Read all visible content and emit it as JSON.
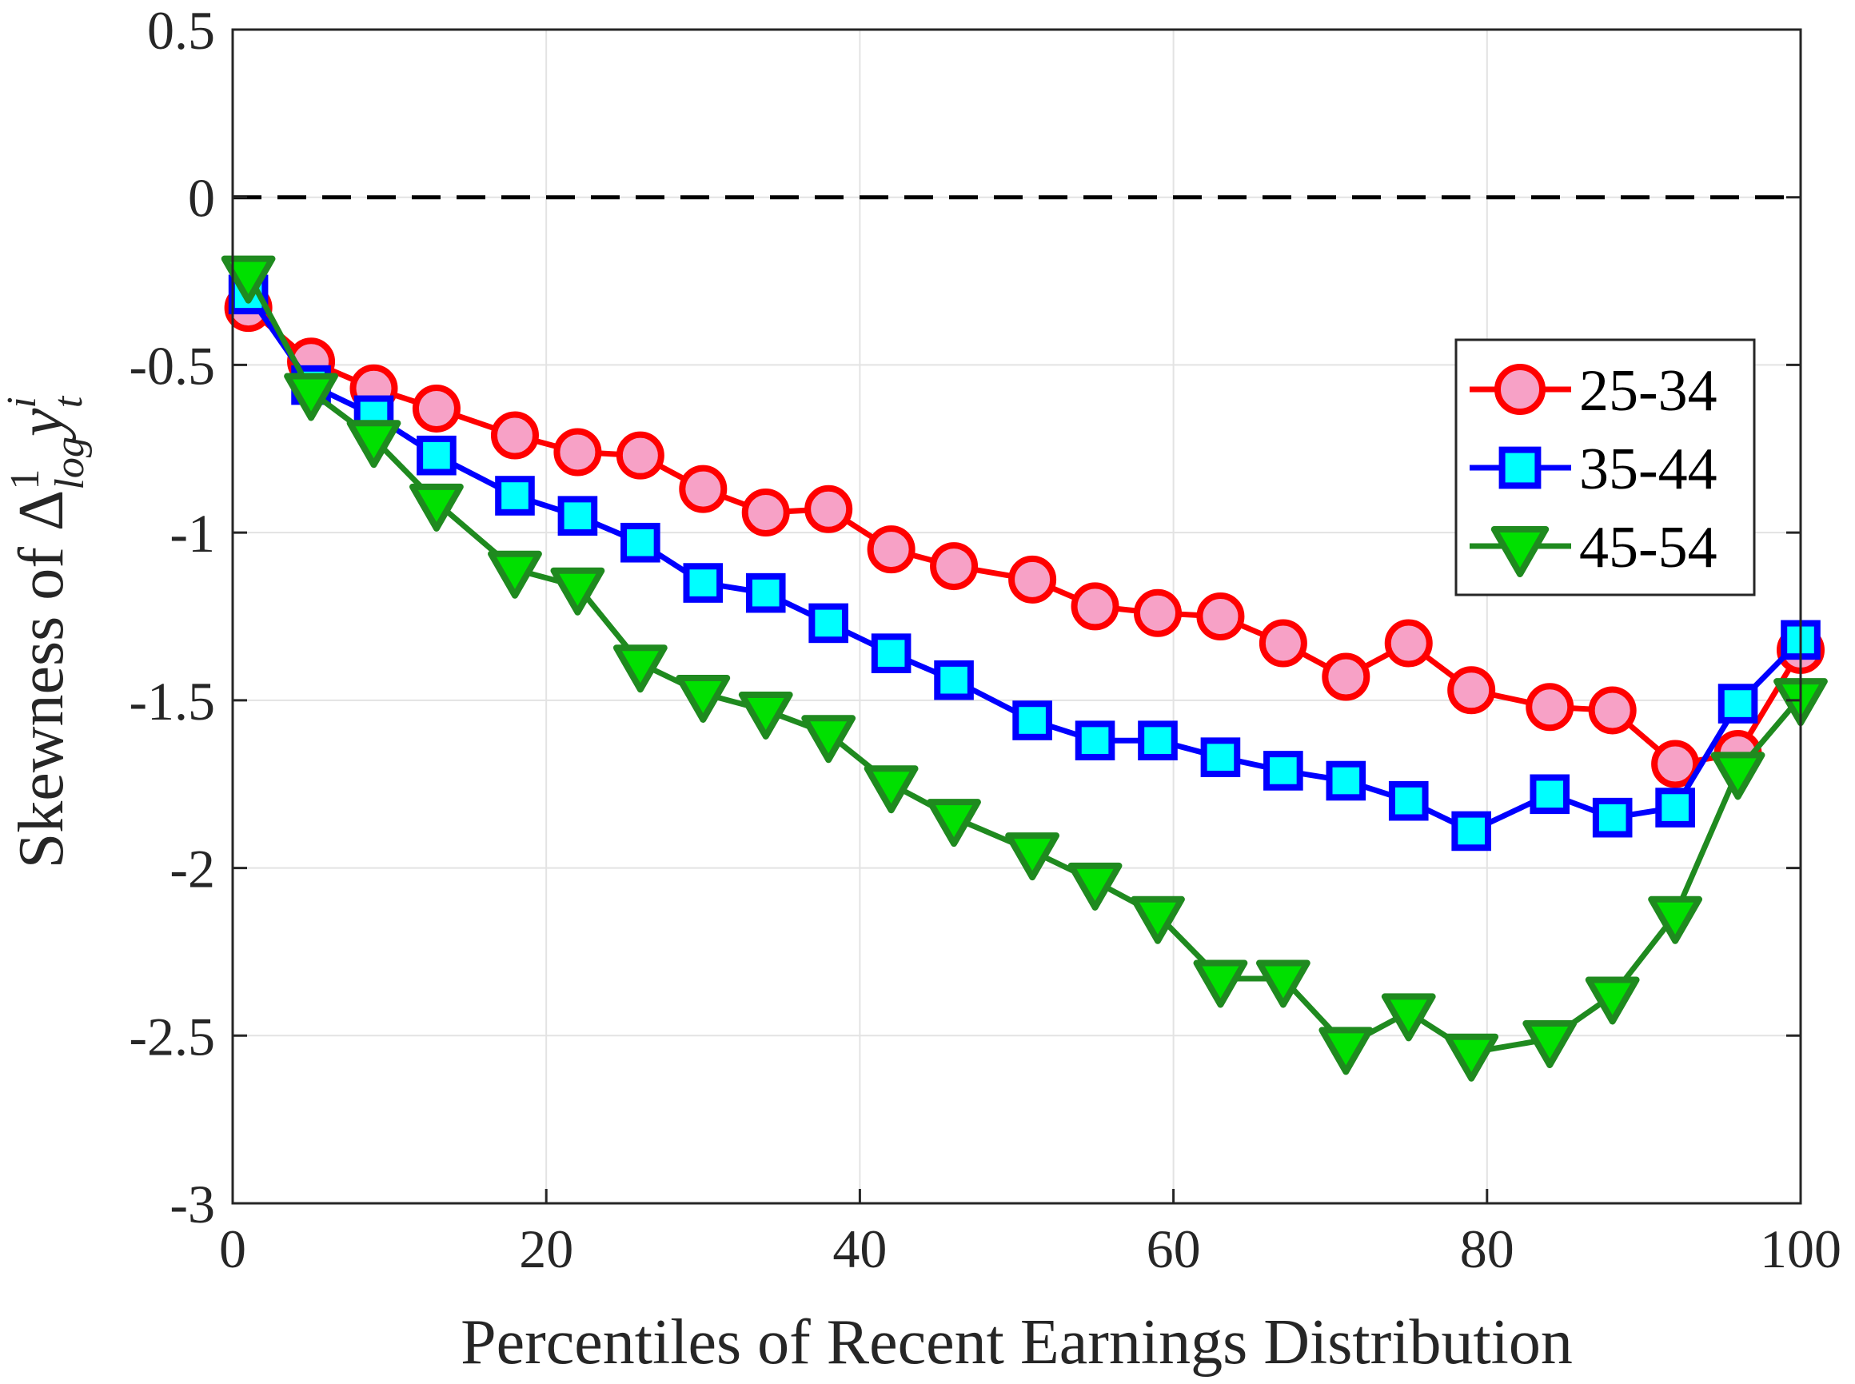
{
  "chart_data": {
    "type": "line",
    "title": "",
    "xlabel": "Percentiles of Recent Earnings Distribution",
    "ylabel": {
      "prefix": "Skewness of ",
      "delta": "Δ",
      "sup": "1",
      "sub": "log",
      "var": "y",
      "var_sub": "t",
      "var_sup": "i"
    },
    "xlim": [
      0,
      100
    ],
    "ylim": [
      -3,
      0.5
    ],
    "xticks": [
      0,
      20,
      40,
      60,
      80,
      100
    ],
    "xtick_labels": [
      "0",
      "20",
      "40",
      "60",
      "80",
      "100"
    ],
    "yticks": [
      0.5,
      0,
      -0.5,
      -1,
      -1.5,
      -2,
      -2.5,
      -3
    ],
    "ytick_labels": [
      "0.5",
      "0",
      "-0.5",
      "-1",
      "-1.5",
      "-2",
      "-2.5",
      "-3"
    ],
    "grid": true,
    "reference_line": {
      "y": 0,
      "style": "dashed",
      "color": "#000000"
    },
    "legend_position": "right",
    "x": [
      1,
      5,
      9,
      13,
      18,
      22,
      26,
      30,
      34,
      38,
      42,
      46,
      51,
      55,
      59,
      63,
      67,
      71,
      75,
      79,
      84,
      88,
      92,
      96,
      100
    ],
    "series": [
      {
        "name": "25-34",
        "marker": "circle",
        "line_color": "#ff0000",
        "fill_color": "#f7a1c6",
        "values": [
          -0.33,
          -0.49,
          -0.57,
          -0.63,
          -0.71,
          -0.76,
          -0.77,
          -0.87,
          -0.94,
          -0.93,
          -1.05,
          -1.1,
          -1.14,
          -1.22,
          -1.24,
          -1.25,
          -1.33,
          -1.43,
          -1.33,
          -1.47,
          -1.52,
          -1.53,
          -1.69,
          -1.66,
          -1.35
        ]
      },
      {
        "name": "35-44",
        "marker": "square",
        "line_color": "#0000ff",
        "fill_color": "#00ffff",
        "values": [
          -0.29,
          -0.56,
          -0.65,
          -0.77,
          -0.89,
          -0.95,
          -1.03,
          -1.15,
          -1.18,
          -1.27,
          -1.36,
          -1.44,
          -1.56,
          -1.62,
          -1.62,
          -1.67,
          -1.71,
          -1.74,
          -1.8,
          -1.89,
          -1.78,
          -1.85,
          -1.82,
          -1.51,
          -1.32
        ]
      },
      {
        "name": "45-54",
        "marker": "triangle-down",
        "line_color": "#1f8a1f",
        "fill_color": "#00e000",
        "values": [
          -0.23,
          -0.58,
          -0.72,
          -0.91,
          -1.11,
          -1.16,
          -1.39,
          -1.48,
          -1.53,
          -1.6,
          -1.75,
          -1.85,
          -1.95,
          -2.04,
          -2.14,
          -2.33,
          -2.33,
          -2.53,
          -2.43,
          -2.55,
          -2.51,
          -2.38,
          -2.14,
          -1.71,
          -1.49
        ]
      }
    ]
  }
}
